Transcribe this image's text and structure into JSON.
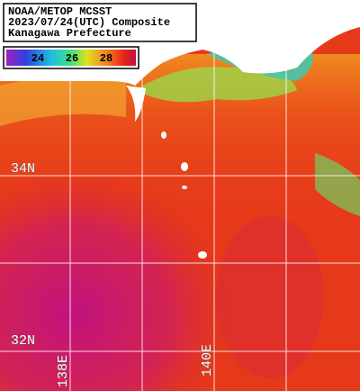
{
  "title": {
    "lines": [
      "NOAA/METOP MCSST",
      "2023/07/24(UTC) Composite",
      "Kanagawa Prefecture"
    ]
  },
  "colorbar": {
    "labels": [
      "24",
      "26",
      "28"
    ]
  },
  "graticule": {
    "latitudes": [
      "34N",
      "32N"
    ],
    "longitudes": [
      "138E",
      "140E"
    ]
  }
}
